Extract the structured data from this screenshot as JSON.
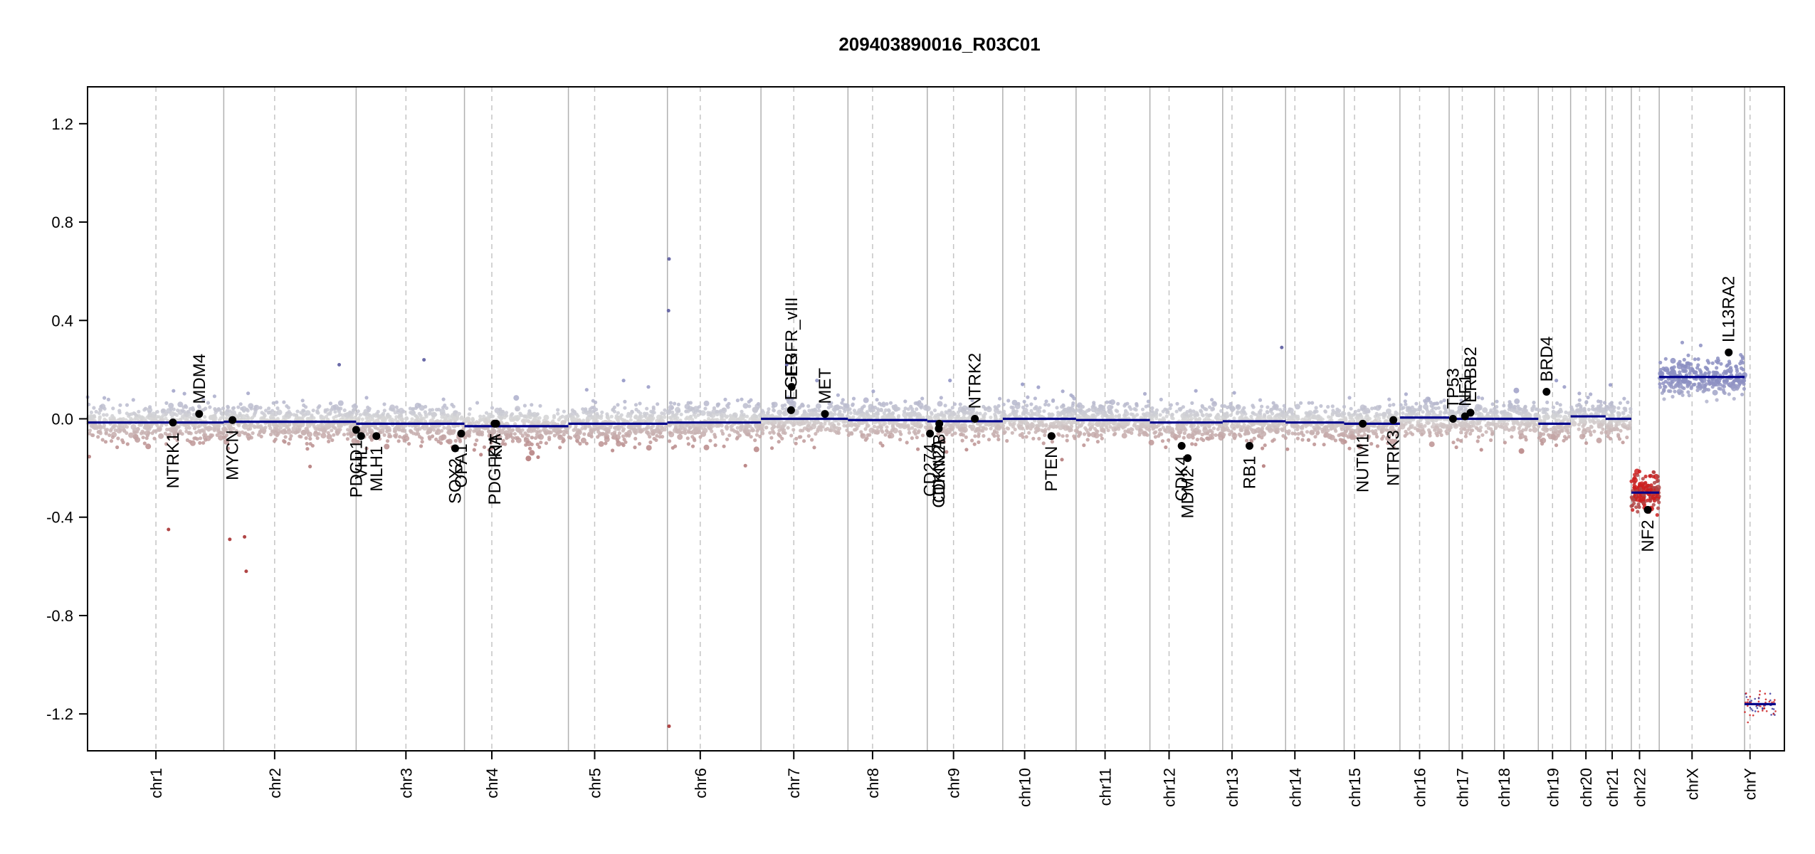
{
  "chart_data": {
    "type": "scatter",
    "title": "209403890016_R03C01",
    "xlabel": "",
    "ylabel": "",
    "ylim": [
      -1.35,
      1.35
    ],
    "yticks": [
      -1.2,
      -0.8,
      -0.4,
      0.0,
      0.4,
      0.8,
      1.2
    ],
    "ytick_labels": [
      "-1.2",
      "-0.8",
      "-0.4",
      "0.0",
      "0.4",
      "0.8",
      "1.2"
    ],
    "genome_length": 3101.8,
    "chromosomes": [
      {
        "name": "chr1",
        "start": 0,
        "end": 249,
        "center": 125
      },
      {
        "name": "chr2",
        "start": 249,
        "end": 491,
        "center": 93
      },
      {
        "name": "chr3",
        "start": 491,
        "end": 689,
        "center": 91
      },
      {
        "name": "chr4",
        "start": 689,
        "end": 879,
        "center": 50
      },
      {
        "name": "chr5",
        "start": 879,
        "end": 1060,
        "center": 48
      },
      {
        "name": "chr6",
        "start": 1060,
        "end": 1231,
        "center": 60
      },
      {
        "name": "chr7",
        "start": 1231,
        "end": 1390,
        "center": 60
      },
      {
        "name": "chr8",
        "start": 1390,
        "end": 1535,
        "center": 45
      },
      {
        "name": "chr9",
        "start": 1535,
        "end": 1673,
        "center": 48
      },
      {
        "name": "chr10",
        "start": 1673,
        "end": 1807,
        "center": 40
      },
      {
        "name": "chr11",
        "start": 1807,
        "end": 1942,
        "center": 53
      },
      {
        "name": "chr12",
        "start": 1942,
        "end": 2075,
        "center": 35
      },
      {
        "name": "chr13",
        "start": 2075,
        "end": 2190,
        "center": 17
      },
      {
        "name": "chr14",
        "start": 2190,
        "end": 2297,
        "center": 17
      },
      {
        "name": "chr15",
        "start": 2297,
        "end": 2399,
        "center": 19
      },
      {
        "name": "chr16",
        "start": 2399,
        "end": 2489,
        "center": 36
      },
      {
        "name": "chr17",
        "start": 2489,
        "end": 2572,
        "center": 24
      },
      {
        "name": "chr18",
        "start": 2572,
        "end": 2652,
        "center": 17
      },
      {
        "name": "chr19",
        "start": 2652,
        "end": 2711,
        "center": 26
      },
      {
        "name": "chr20",
        "start": 2711,
        "end": 2775,
        "center": 28
      },
      {
        "name": "chr21",
        "start": 2775,
        "end": 2822,
        "center": 12
      },
      {
        "name": "chr22",
        "start": 2822,
        "end": 2873,
        "center": 15
      },
      {
        "name": "chrX",
        "start": 2873,
        "end": 3029,
        "center": 60
      },
      {
        "name": "chrY",
        "start": 3029,
        "end": 3086,
        "center": 10
      }
    ],
    "segments": [
      {
        "start": 0,
        "end": 249,
        "value": -0.015
      },
      {
        "start": 249,
        "end": 491,
        "value": -0.012
      },
      {
        "start": 491,
        "end": 689,
        "value": -0.02
      },
      {
        "start": 689,
        "end": 879,
        "value": -0.03
      },
      {
        "start": 879,
        "end": 1060,
        "value": -0.02
      },
      {
        "start": 1060,
        "end": 1231,
        "value": -0.015
      },
      {
        "start": 1231,
        "end": 1390,
        "value": 0.0
      },
      {
        "start": 1390,
        "end": 1535,
        "value": -0.005
      },
      {
        "start": 1535,
        "end": 1673,
        "value": -0.01
      },
      {
        "start": 1673,
        "end": 1807,
        "value": 0.0
      },
      {
        "start": 1807,
        "end": 1942,
        "value": -0.005
      },
      {
        "start": 1942,
        "end": 2075,
        "value": -0.015
      },
      {
        "start": 2075,
        "end": 2190,
        "value": -0.01
      },
      {
        "start": 2190,
        "end": 2297,
        "value": -0.015
      },
      {
        "start": 2297,
        "end": 2399,
        "value": -0.02
      },
      {
        "start": 2399,
        "end": 2489,
        "value": 0.005
      },
      {
        "start": 2489,
        "end": 2572,
        "value": 0.0
      },
      {
        "start": 2572,
        "end": 2652,
        "value": 0.0
      },
      {
        "start": 2652,
        "end": 2711,
        "value": -0.02
      },
      {
        "start": 2711,
        "end": 2775,
        "value": 0.01
      },
      {
        "start": 2775,
        "end": 2822,
        "value": 0.0
      },
      {
        "start": 2822,
        "end": 2873,
        "value": -0.3
      },
      {
        "start": 2873,
        "end": 3029,
        "value": 0.17
      },
      {
        "start": 3029,
        "end": 3086,
        "value": -1.16
      }
    ],
    "genes": [
      {
        "name": "NTRK1",
        "pos": 156,
        "value": -0.015,
        "label_side": "below"
      },
      {
        "name": "MDM4",
        "pos": 204,
        "value": 0.02,
        "label_side": "above"
      },
      {
        "name": "MYCN",
        "pos": 265,
        "value": -0.005,
        "label_side": "below"
      },
      {
        "name": "PDCD1",
        "pos": 491,
        "value": -0.045,
        "label_side": "below"
      },
      {
        "name": "VHL",
        "pos": 500,
        "value": -0.07,
        "label_side": "below"
      },
      {
        "name": "MLH1",
        "pos": 528,
        "value": -0.07,
        "label_side": "below"
      },
      {
        "name": "SOX2",
        "pos": 672,
        "value": -0.12,
        "label_side": "below"
      },
      {
        "name": "OPA1",
        "pos": 683,
        "value": -0.06,
        "label_side": "below"
      },
      {
        "name": "PDGFRA",
        "pos": 744,
        "value": -0.02,
        "label_side": "below"
      },
      {
        "name": "KIT",
        "pos": 747,
        "value": -0.02,
        "label_side": "below"
      },
      {
        "name": "EGFR",
        "pos": 1286,
        "value": 0.035,
        "label_side": "above"
      },
      {
        "name": "EGFR_vIII",
        "pos": 1287,
        "value": 0.13,
        "label_side": "above"
      },
      {
        "name": "MET",
        "pos": 1348,
        "value": 0.02,
        "label_side": "above"
      },
      {
        "name": "CD274",
        "pos": 1540,
        "value": -0.06,
        "label_side": "below"
      },
      {
        "name": "CDKN2A",
        "pos": 1556,
        "value": -0.04,
        "label_side": "below"
      },
      {
        "name": "CDKN2B",
        "pos": 1557,
        "value": -0.02,
        "label_side": "below"
      },
      {
        "name": "NTRK2",
        "pos": 1622,
        "value": 0.0,
        "label_side": "above"
      },
      {
        "name": "PTEN",
        "pos": 1762,
        "value": -0.07,
        "label_side": "below"
      },
      {
        "name": "CDK4",
        "pos": 2000,
        "value": -0.11,
        "label_side": "below"
      },
      {
        "name": "MDM2",
        "pos": 2011,
        "value": -0.16,
        "label_side": "below"
      },
      {
        "name": "RB1",
        "pos": 2124,
        "value": -0.11,
        "label_side": "below"
      },
      {
        "name": "NUTM1",
        "pos": 2331,
        "value": -0.02,
        "label_side": "below"
      },
      {
        "name": "NTRK3",
        "pos": 2387,
        "value": -0.005,
        "label_side": "below"
      },
      {
        "name": "TP53",
        "pos": 2496,
        "value": 0.0,
        "label_side": "above"
      },
      {
        "name": "NF1",
        "pos": 2518,
        "value": 0.01,
        "label_side": "above"
      },
      {
        "name": "ERBB2",
        "pos": 2528,
        "value": 0.025,
        "label_side": "above"
      },
      {
        "name": "BRD4",
        "pos": 2667,
        "value": 0.11,
        "label_side": "above"
      },
      {
        "name": "NF2",
        "pos": 2852,
        "value": -0.37,
        "label_side": "below"
      },
      {
        "name": "IL13RA2",
        "pos": 3000,
        "value": 0.27,
        "label_side": "above"
      }
    ],
    "outliers": [
      {
        "pos": 148,
        "value": -0.45
      },
      {
        "pos": 260,
        "value": -0.49
      },
      {
        "pos": 287,
        "value": -0.48
      },
      {
        "pos": 290,
        "value": -0.62
      },
      {
        "pos": 615,
        "value": 0.24
      },
      {
        "pos": 460,
        "value": 0.22
      },
      {
        "pos": 1062,
        "value": 0.44
      },
      {
        "pos": 1063,
        "value": 0.65
      },
      {
        "pos": 1063,
        "value": -1.25
      },
      {
        "pos": 1278,
        "value": 0.22
      },
      {
        "pos": 2183,
        "value": 0.29
      }
    ],
    "colors": {
      "gain": "#8c8fc2",
      "neutral": "#d6d6d6",
      "loss": "#b07373",
      "segment": "#00008b",
      "loss_strong": "#cc2020"
    },
    "grid": false,
    "legend": "none"
  }
}
